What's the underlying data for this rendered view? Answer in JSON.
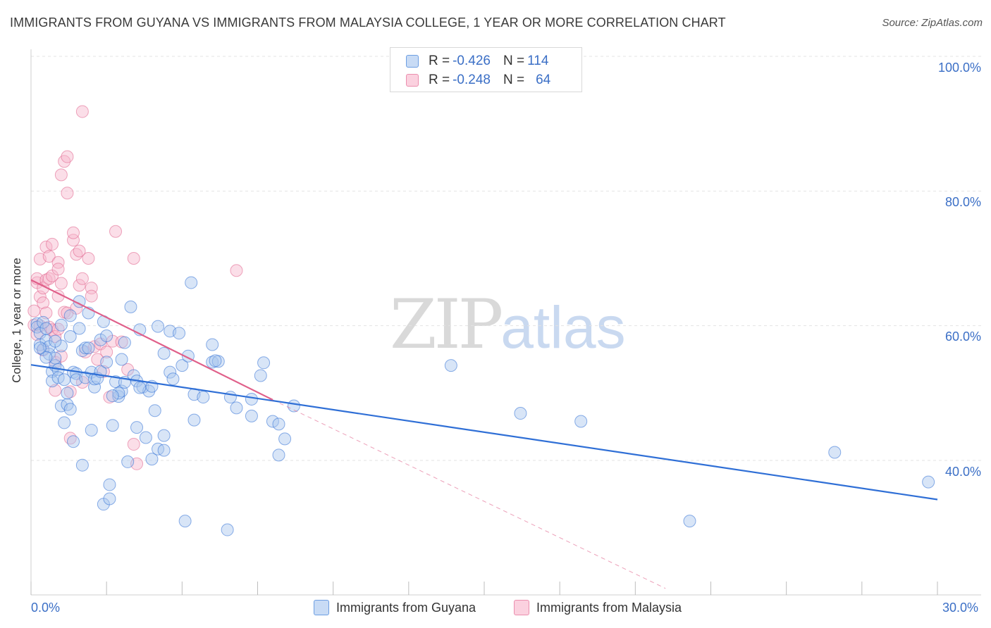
{
  "title": "IMMIGRANTS FROM GUYANA VS IMMIGRANTS FROM MALAYSIA COLLEGE, 1 YEAR OR MORE CORRELATION CHART",
  "source": "Source: ZipAtlas.com",
  "watermark": {
    "zip": "ZIP",
    "atlas": "atlas"
  },
  "colors": {
    "blue": "#2f6fd6",
    "blue_fill": "#a9c6ee",
    "pink": "#e0608a",
    "pink_fill": "#f6b6cb",
    "grid": "#e3e3e3",
    "axis_text": "#3b6fc6"
  },
  "legend": {
    "rows": [
      {
        "r_label": "R = ",
        "r_value": "-0.426",
        "n_label": "N = ",
        "n_value": "114"
      },
      {
        "r_label": "R = ",
        "r_value": "-0.248",
        "n_label": "N = ",
        "n_value": "64"
      }
    ]
  },
  "chart_data": {
    "type": "scatter",
    "title": "IMMIGRANTS FROM GUYANA VS IMMIGRANTS FROM MALAYSIA COLLEGE, 1 YEAR OR MORE CORRELATION CHART",
    "xlabel": "",
    "ylabel": "College, 1 year or more",
    "xlim": [
      0,
      30
    ],
    "ylim": [
      20,
      102
    ],
    "x_tick_labels": [
      "0.0%",
      "30.0%"
    ],
    "y_tick_values": [
      40,
      60,
      80,
      100
    ],
    "y_tick_labels": [
      "40.0%",
      "60.0%",
      "80.0%",
      "100.0%"
    ],
    "series": [
      {
        "name": "Immigrants from Guyana",
        "r": -0.426,
        "n": 114,
        "trend": {
          "x": [
            0,
            30
          ],
          "y": [
            54.2,
            34.2
          ]
        },
        "points": [
          [
            0.2,
            60.3
          ],
          [
            0.2,
            59.8
          ],
          [
            0.3,
            58.9
          ],
          [
            0.3,
            57.2
          ],
          [
            0.4,
            60.5
          ],
          [
            0.4,
            56.5
          ],
          [
            0.5,
            57.8
          ],
          [
            0.5,
            59.6
          ],
          [
            0.6,
            55.8
          ],
          [
            0.6,
            56.9
          ],
          [
            0.7,
            53.2
          ],
          [
            0.7,
            51.8
          ],
          [
            0.8,
            54.1
          ],
          [
            0.8,
            55.2
          ],
          [
            0.9,
            53.5
          ],
          [
            0.9,
            52.3
          ],
          [
            1.0,
            57.0
          ],
          [
            1.0,
            48.1
          ],
          [
            1.1,
            45.6
          ],
          [
            1.1,
            52.0
          ],
          [
            1.2,
            48.3
          ],
          [
            1.2,
            50.0
          ],
          [
            1.3,
            61.5
          ],
          [
            1.3,
            58.4
          ],
          [
            1.4,
            53.1
          ],
          [
            1.4,
            42.8
          ],
          [
            1.5,
            52.9
          ],
          [
            1.5,
            52.0
          ],
          [
            1.6,
            63.6
          ],
          [
            1.6,
            59.6
          ],
          [
            1.7,
            56.3
          ],
          [
            1.7,
            39.3
          ],
          [
            1.8,
            56.7
          ],
          [
            1.8,
            52.3
          ],
          [
            1.9,
            61.9
          ],
          [
            1.9,
            56.7
          ],
          [
            2.0,
            53.1
          ],
          [
            2.0,
            44.5
          ],
          [
            2.1,
            50.9
          ],
          [
            2.1,
            52.1
          ],
          [
            2.2,
            52.2
          ],
          [
            2.3,
            57.9
          ],
          [
            2.3,
            53.2
          ],
          [
            2.4,
            60.6
          ],
          [
            2.4,
            33.5
          ],
          [
            2.5,
            58.5
          ],
          [
            2.5,
            54.6
          ],
          [
            2.6,
            36.4
          ],
          [
            2.6,
            34.3
          ],
          [
            2.7,
            45.2
          ],
          [
            2.8,
            51.7
          ],
          [
            2.9,
            49.5
          ],
          [
            3.0,
            55.0
          ],
          [
            3.0,
            50.3
          ],
          [
            3.1,
            57.5
          ],
          [
            3.1,
            51.6
          ],
          [
            3.2,
            39.8
          ],
          [
            3.3,
            62.8
          ],
          [
            3.4,
            52.6
          ],
          [
            3.5,
            44.9
          ],
          [
            3.5,
            51.8
          ],
          [
            3.6,
            59.4
          ],
          [
            3.7,
            50.9
          ],
          [
            3.8,
            43.4
          ],
          [
            3.9,
            50.3
          ],
          [
            4.0,
            51.0
          ],
          [
            4.0,
            40.2
          ],
          [
            4.1,
            47.4
          ],
          [
            4.2,
            59.9
          ],
          [
            4.2,
            41.7
          ],
          [
            4.4,
            55.9
          ],
          [
            4.4,
            43.7
          ],
          [
            4.6,
            59.2
          ],
          [
            4.6,
            53.1
          ],
          [
            4.7,
            52.1
          ],
          [
            4.9,
            58.9
          ],
          [
            5.0,
            54.1
          ],
          [
            5.2,
            55.5
          ],
          [
            5.3,
            66.4
          ],
          [
            5.4,
            49.8
          ],
          [
            5.4,
            46.0
          ],
          [
            5.7,
            49.4
          ],
          [
            6.0,
            54.6
          ],
          [
            6.0,
            57.2
          ],
          [
            6.2,
            54.7
          ],
          [
            6.6,
            49.4
          ],
          [
            6.8,
            47.8
          ],
          [
            7.3,
            49.1
          ],
          [
            7.3,
            46.6
          ],
          [
            7.6,
            52.6
          ],
          [
            7.7,
            54.5
          ],
          [
            8.0,
            45.8
          ],
          [
            8.2,
            45.4
          ],
          [
            8.2,
            40.8
          ],
          [
            8.4,
            43.2
          ],
          [
            8.7,
            48.1
          ],
          [
            13.9,
            54.1
          ],
          [
            16.2,
            47.0
          ],
          [
            18.2,
            45.8
          ],
          [
            26.6,
            41.2
          ],
          [
            29.7,
            36.8
          ],
          [
            21.8,
            31.0
          ],
          [
            5.1,
            31.0
          ],
          [
            6.5,
            29.7
          ],
          [
            1.3,
            47.6
          ],
          [
            0.5,
            55.3
          ],
          [
            2.9,
            50.0
          ],
          [
            3.6,
            50.8
          ],
          [
            1.0,
            60.1
          ],
          [
            0.8,
            57.7
          ],
          [
            2.7,
            49.6
          ],
          [
            4.4,
            41.5
          ],
          [
            6.1,
            54.8
          ],
          [
            0.3,
            56.7
          ]
        ]
      },
      {
        "name": "Immigrants from Malaysia",
        "r": -0.248,
        "n": 64,
        "trend": {
          "x": [
            0,
            8.0
          ],
          "y": [
            66.8,
            49.0
          ]
        },
        "trend_extension": {
          "x": [
            8.0,
            21.0
          ],
          "y": [
            49.0,
            21.0
          ]
        },
        "points": [
          [
            0.1,
            62.2
          ],
          [
            0.1,
            60.1
          ],
          [
            0.2,
            66.4
          ],
          [
            0.2,
            67.0
          ],
          [
            0.2,
            58.7
          ],
          [
            0.3,
            69.9
          ],
          [
            0.3,
            64.3
          ],
          [
            0.3,
            60.0
          ],
          [
            0.4,
            65.6
          ],
          [
            0.4,
            63.4
          ],
          [
            0.4,
            56.4
          ],
          [
            0.5,
            71.7
          ],
          [
            0.5,
            66.8
          ],
          [
            0.5,
            61.9
          ],
          [
            0.6,
            70.3
          ],
          [
            0.6,
            67.0
          ],
          [
            0.6,
            59.8
          ],
          [
            0.7,
            72.1
          ],
          [
            0.7,
            67.4
          ],
          [
            0.7,
            59.4
          ],
          [
            0.8,
            58.4
          ],
          [
            0.8,
            54.6
          ],
          [
            0.8,
            50.4
          ],
          [
            0.9,
            69.4
          ],
          [
            0.9,
            64.4
          ],
          [
            0.9,
            59.5
          ],
          [
            1.0,
            82.4
          ],
          [
            1.0,
            66.3
          ],
          [
            1.0,
            55.5
          ],
          [
            1.1,
            84.4
          ],
          [
            1.1,
            62.0
          ],
          [
            1.2,
            79.7
          ],
          [
            1.2,
            85.1
          ],
          [
            1.2,
            61.9
          ],
          [
            1.3,
            50.2
          ],
          [
            1.3,
            43.3
          ],
          [
            1.4,
            72.7
          ],
          [
            1.4,
            73.8
          ],
          [
            1.5,
            70.6
          ],
          [
            1.5,
            62.6
          ],
          [
            1.6,
            66.0
          ],
          [
            1.6,
            71.1
          ],
          [
            1.7,
            91.8
          ],
          [
            1.7,
            67.0
          ],
          [
            1.7,
            51.6
          ],
          [
            1.8,
            56.1
          ],
          [
            1.9,
            70.0
          ],
          [
            2.0,
            65.6
          ],
          [
            2.0,
            64.4
          ],
          [
            2.1,
            56.9
          ],
          [
            2.2,
            55.0
          ],
          [
            2.3,
            57.3
          ],
          [
            2.4,
            53.2
          ],
          [
            2.5,
            56.1
          ],
          [
            2.6,
            49.4
          ],
          [
            2.7,
            57.7
          ],
          [
            2.8,
            74.0
          ],
          [
            3.0,
            57.6
          ],
          [
            3.2,
            53.5
          ],
          [
            3.4,
            70.0
          ],
          [
            3.4,
            42.4
          ],
          [
            3.5,
            39.5
          ],
          [
            6.8,
            68.2
          ],
          [
            0.9,
            68.4
          ]
        ]
      }
    ]
  },
  "bottom_legend": [
    "Immigrants from Guyana",
    "Immigrants from Malaysia"
  ]
}
